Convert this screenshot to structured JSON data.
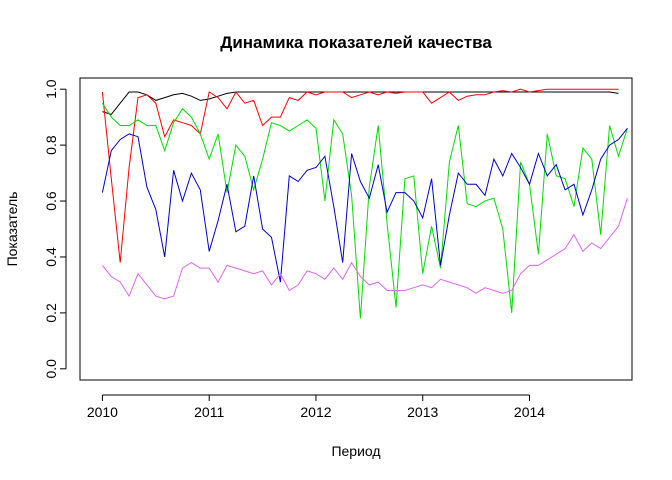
{
  "chart_data": {
    "type": "line",
    "title": "Динамика показателей качества",
    "xlabel": "Период",
    "ylabel": "Показатель",
    "xlim": [
      2009.79,
      2014.96
    ],
    "ylim": [
      -0.04,
      1.04
    ],
    "x_ticks": [
      "2010",
      "2011",
      "2012",
      "2013",
      "2014"
    ],
    "y_ticks": [
      "0.0",
      "0.2",
      "0.4",
      "0.6",
      "0.8",
      "1.0"
    ],
    "grid": false,
    "legend": "none",
    "x_start": 2010.0,
    "x_step": 0.0833333,
    "series": [
      {
        "color": "#000000",
        "values": [
          0.92,
          0.91,
          0.95,
          0.99,
          0.99,
          0.98,
          0.96,
          0.97,
          0.98,
          0.985,
          0.975,
          0.96,
          0.965,
          0.975,
          0.985,
          0.99,
          0.99,
          0.99,
          0.99,
          0.99,
          0.99,
          0.99,
          0.99,
          0.99,
          0.99,
          0.99,
          0.99,
          0.99,
          0.99,
          0.99,
          0.99,
          0.99,
          0.99,
          0.99,
          0.99,
          0.99,
          0.99,
          0.99,
          0.99,
          0.99,
          0.99,
          0.99,
          0.99,
          0.99,
          0.99,
          0.99,
          0.99,
          0.99,
          0.99,
          0.99,
          0.99,
          0.99,
          0.99,
          0.99,
          0.99,
          0.99,
          0.99,
          0.99,
          0.985
        ]
      },
      {
        "color": "#ff0000",
        "values": [
          0.99,
          0.68,
          0.38,
          0.72,
          0.97,
          0.98,
          0.95,
          0.83,
          0.89,
          0.88,
          0.87,
          0.84,
          0.99,
          0.97,
          0.93,
          0.99,
          0.95,
          0.96,
          0.87,
          0.9,
          0.9,
          0.97,
          0.96,
          0.99,
          0.98,
          0.99,
          0.99,
          0.99,
          0.97,
          0.98,
          0.99,
          0.98,
          0.99,
          0.985,
          0.99,
          0.99,
          0.99,
          0.95,
          0.97,
          0.99,
          0.96,
          0.975,
          0.98,
          0.98,
          0.99,
          0.995,
          0.99,
          1.0,
          0.99,
          0.995,
          1.0,
          1.0,
          1.0,
          1.0,
          1.0,
          1.0,
          1.0,
          1.0,
          1.0
        ]
      },
      {
        "color": "#00dd00",
        "values": [
          0.95,
          0.9,
          0.87,
          0.87,
          0.89,
          0.87,
          0.87,
          0.78,
          0.88,
          0.93,
          0.9,
          0.84,
          0.75,
          0.84,
          0.63,
          0.8,
          0.76,
          0.64,
          0.75,
          0.88,
          0.87,
          0.85,
          0.87,
          0.89,
          0.86,
          0.6,
          0.89,
          0.84,
          0.62,
          0.18,
          0.65,
          0.87,
          0.52,
          0.22,
          0.68,
          0.69,
          0.34,
          0.51,
          0.36,
          0.74,
          0.87,
          0.59,
          0.58,
          0.6,
          0.61,
          0.5,
          0.2,
          0.74,
          0.66,
          0.41,
          0.84,
          0.69,
          0.68,
          0.58,
          0.79,
          0.75,
          0.48,
          0.87,
          0.76,
          0.86
        ]
      },
      {
        "color": "#0000cc",
        "values": [
          0.63,
          0.78,
          0.82,
          0.84,
          0.83,
          0.65,
          0.57,
          0.4,
          0.71,
          0.6,
          0.7,
          0.64,
          0.42,
          0.53,
          0.66,
          0.49,
          0.51,
          0.69,
          0.5,
          0.47,
          0.31,
          0.69,
          0.67,
          0.71,
          0.72,
          0.76,
          0.58,
          0.38,
          0.77,
          0.67,
          0.61,
          0.73,
          0.56,
          0.63,
          0.63,
          0.6,
          0.54,
          0.68,
          0.37,
          0.55,
          0.7,
          0.66,
          0.66,
          0.62,
          0.75,
          0.69,
          0.77,
          0.72,
          0.66,
          0.77,
          0.69,
          0.73,
          0.64,
          0.66,
          0.55,
          0.64,
          0.75,
          0.8,
          0.82,
          0.86
        ]
      },
      {
        "color": "#dd66ee",
        "values": [
          0.37,
          0.33,
          0.31,
          0.26,
          0.34,
          0.3,
          0.26,
          0.25,
          0.26,
          0.36,
          0.38,
          0.36,
          0.36,
          0.31,
          0.37,
          0.36,
          0.35,
          0.34,
          0.35,
          0.3,
          0.34,
          0.28,
          0.3,
          0.35,
          0.34,
          0.32,
          0.36,
          0.32,
          0.38,
          0.33,
          0.3,
          0.31,
          0.28,
          0.28,
          0.28,
          0.29,
          0.3,
          0.29,
          0.32,
          0.31,
          0.3,
          0.29,
          0.27,
          0.29,
          0.28,
          0.27,
          0.28,
          0.34,
          0.37,
          0.37,
          0.39,
          0.41,
          0.43,
          0.48,
          0.42,
          0.45,
          0.43,
          0.47,
          0.51,
          0.61
        ]
      }
    ]
  }
}
